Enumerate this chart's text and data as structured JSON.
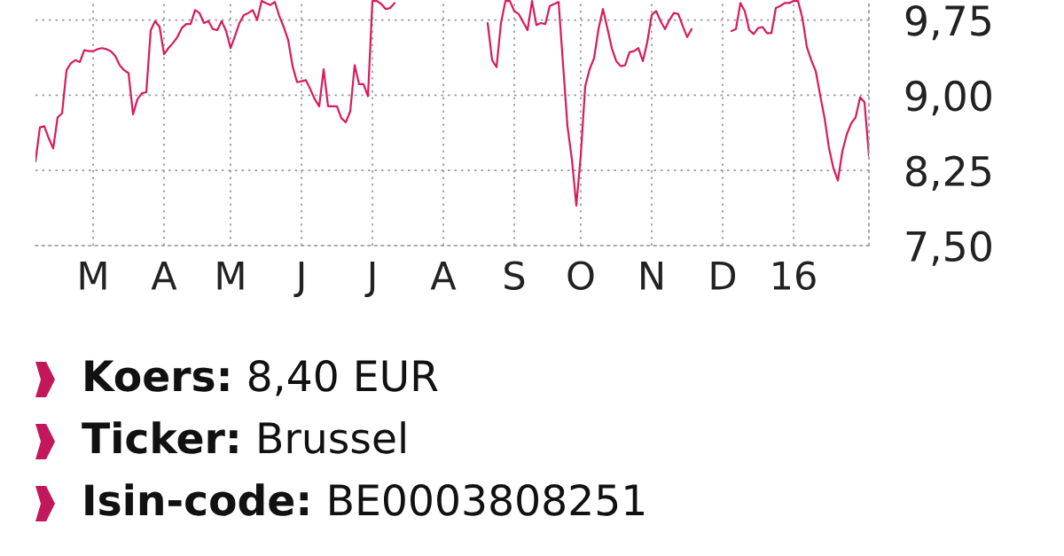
{
  "chart_data": {
    "type": "line",
    "categories": [
      null,
      null,
      null,
      null,
      null,
      null,
      null,
      null,
      null,
      null,
      null,
      null,
      null,
      "M",
      null,
      null,
      null,
      null,
      null,
      null,
      null,
      null,
      null,
      null,
      null,
      null,
      null,
      null,
      null,
      "A",
      null,
      null,
      null,
      null,
      null,
      null,
      null,
      null,
      null,
      null,
      null,
      null,
      null,
      null,
      "M",
      null,
      null,
      null,
      null,
      null,
      null,
      null,
      null,
      null,
      null,
      null,
      null,
      null,
      null,
      null,
      "J",
      null,
      null,
      null,
      null,
      null,
      null,
      null,
      null,
      null,
      null,
      null,
      null,
      null,
      null,
      null,
      "J",
      null,
      null,
      null,
      null,
      null,
      null,
      null,
      null,
      null,
      null,
      null,
      null,
      null,
      null,
      null,
      "A",
      null,
      null,
      null,
      null,
      null,
      null,
      null,
      null,
      null,
      null,
      null,
      null,
      null,
      null,
      null,
      "S",
      null,
      null,
      null,
      null,
      null,
      null,
      null,
      null,
      null,
      null,
      null,
      null,
      null,
      null,
      "O",
      null,
      null,
      null,
      null,
      null,
      null,
      null,
      null,
      null,
      null,
      null,
      null,
      null,
      null,
      null,
      "N",
      null,
      null,
      null,
      null,
      null,
      null,
      null,
      null,
      null,
      null,
      null,
      null,
      null,
      null,
      null,
      "D",
      null,
      null,
      null,
      null,
      null,
      null,
      null,
      null,
      null,
      null,
      null,
      null,
      null,
      null,
      null,
      "16",
      null,
      null,
      null,
      null,
      null,
      null,
      null,
      null,
      null,
      null,
      null,
      null,
      null,
      null,
      null,
      null,
      null
    ],
    "series": [
      {
        "color": "#d81b60",
        "values": [
          8.34,
          8.68,
          8.69,
          8.57,
          8.47,
          8.78,
          8.82,
          9.25,
          9.32,
          9.35,
          9.33,
          9.45,
          9.44,
          9.44,
          9.46,
          9.47,
          9.46,
          9.44,
          9.39,
          9.3,
          9.25,
          9.22,
          8.81,
          8.96,
          9.02,
          9.03,
          9.65,
          9.74,
          9.68,
          9.41,
          9.47,
          9.52,
          9.58,
          9.67,
          9.71,
          9.71,
          9.85,
          9.82,
          9.72,
          9.74,
          9.66,
          9.65,
          9.74,
          9.64,
          9.47,
          9.59,
          9.72,
          9.8,
          9.82,
          9.85,
          9.75,
          9.94,
          9.92,
          9.9,
          9.93,
          9.79,
          9.68,
          9.55,
          9.29,
          9.13,
          9.14,
          9.15,
          9.06,
          8.96,
          8.89,
          9.26,
          8.89,
          8.89,
          8.89,
          8.77,
          8.73,
          8.84,
          9.3,
          9.11,
          9.11,
          8.99,
          9.94,
          9.94,
          9.91,
          9.86,
          9.87,
          9.92,
          null,
          null,
          null,
          null,
          null,
          null,
          null,
          null,
          null,
          null,
          null,
          null,
          null,
          null,
          null,
          null,
          null,
          null,
          null,
          null,
          9.72,
          9.35,
          9.28,
          9.72,
          9.94,
          9.94,
          9.84,
          9.81,
          9.73,
          9.65,
          9.94,
          9.7,
          9.72,
          9.71,
          9.89,
          9.91,
          9.93,
          9.31,
          8.69,
          8.36,
          7.9,
          8.4,
          9.09,
          9.26,
          9.37,
          9.66,
          9.86,
          9.67,
          9.47,
          9.34,
          9.29,
          9.3,
          9.43,
          9.44,
          9.47,
          9.34,
          9.53,
          9.8,
          9.84,
          9.74,
          9.66,
          9.75,
          9.82,
          9.81,
          9.69,
          9.58,
          9.66,
          null,
          null,
          null,
          null,
          null,
          null,
          null,
          null,
          9.64,
          9.66,
          9.92,
          9.84,
          9.65,
          9.61,
          9.67,
          9.68,
          9.62,
          9.62,
          9.87,
          9.89,
          9.92,
          9.92,
          9.94,
          9.94,
          9.77,
          9.48,
          9.35,
          9.24,
          9.0,
          8.77,
          8.47,
          8.27,
          8.15,
          8.44,
          8.61,
          8.72,
          8.78,
          8.98,
          8.93,
          8.4
        ]
      }
    ],
    "ylim": [
      7.5,
      9.95
    ],
    "yticks": [
      {
        "value": 7.5,
        "label": "7,50"
      },
      {
        "value": 8.25,
        "label": "8,25"
      },
      {
        "value": 9.0,
        "label": "9,00"
      },
      {
        "value": 9.75,
        "label": "9,75"
      }
    ],
    "grid": true,
    "line_style": "solid",
    "annotations": [
      "Koers: 8,40 EUR",
      "Ticker: Brussel",
      "Isin-code: BE0003808251"
    ]
  }
}
